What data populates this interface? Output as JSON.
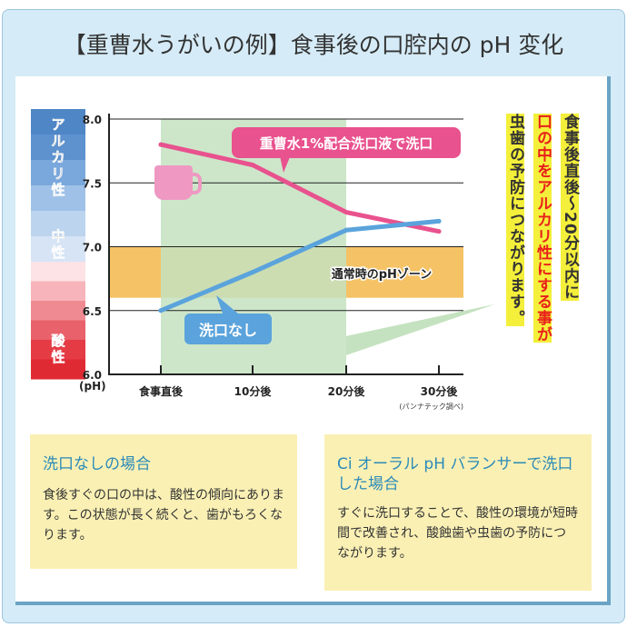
{
  "title": "【重曹水うがいの例】食事後の口腔内の pH 変化",
  "chart_data": {
    "type": "line",
    "categories": [
      "食事直後",
      "10分後",
      "20分後",
      "30分後"
    ],
    "ylabel": "(pH)",
    "ylim": [
      6.0,
      8.0
    ],
    "yticks": [
      "8.0",
      "7.5",
      "7.0",
      "6.5",
      "6.0"
    ],
    "series": [
      {
        "name": "重曹水1%配合洗口液で洗口",
        "values": [
          7.8,
          7.64,
          7.27,
          7.12
        ],
        "color": "#e8528e"
      },
      {
        "name": "洗口なし",
        "values": [
          6.5,
          6.8,
          7.13,
          7.2
        ],
        "color": "#5aa3dc"
      }
    ],
    "zones": {
      "normal_label": "通常時のpHゾーン",
      "normal_range": [
        6.6,
        7.0
      ],
      "normal_color": "#f5c265",
      "highlight_range": [
        "食事直後",
        "20分後"
      ],
      "highlight_color": "#c4e2bf"
    },
    "scale_labels": {
      "alkaline": "アルカリ性",
      "neutral": "中性",
      "acidic": "酸性"
    },
    "source": "(パンナテック調べ)"
  },
  "callout": {
    "col1": "食事後直後～20分以内に",
    "col2": "口の中をアルカリ性にする事が",
    "col3": "虫歯の予防につながります。"
  },
  "boxes": [
    {
      "heading": "洗口なしの場合",
      "body": "食後すぐの口の中は、酸性の傾向にあります。この状態が長く続くと、歯がもろくなります。"
    },
    {
      "heading": "Ci オーラル pH バランサーで洗口した場合",
      "body": "すぐに洗口することで、酸性の環境が短時間で改善され、酸蝕歯や虫歯の予防につながります。"
    }
  ]
}
